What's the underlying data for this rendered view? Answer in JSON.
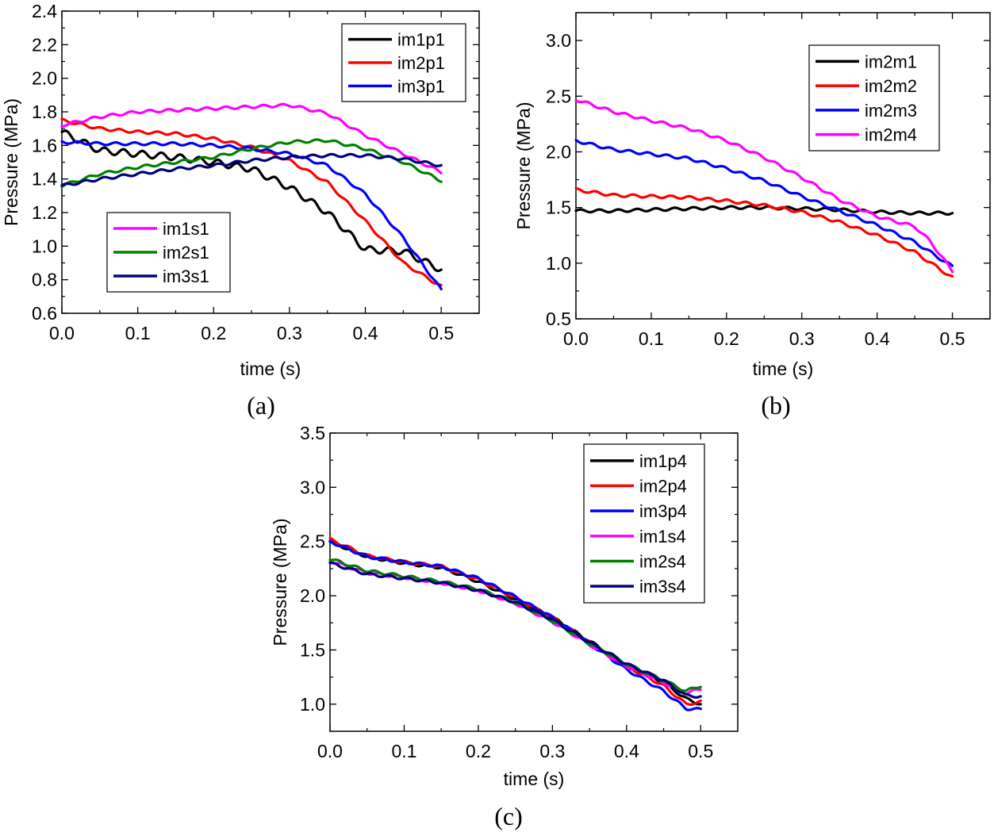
{
  "chart_data": [
    {
      "type": "line",
      "panel": "(a)",
      "xlabel": "time (s)",
      "ylabel": "Pressure (MPa)",
      "xlim": [
        0,
        0.55
      ],
      "ylim": [
        0.6,
        2.4
      ],
      "xticks": [
        "0.0",
        "0.1",
        "0.2",
        "0.3",
        "0.4",
        "0.5"
      ],
      "yticks": [
        "0.6",
        "0.8",
        "1.0",
        "1.2",
        "1.4",
        "1.6",
        "1.8",
        "2.0",
        "2.2",
        "2.4"
      ],
      "legend_placement": [
        "top-right",
        "bottom-left"
      ],
      "legends": [
        [
          "im1p1",
          "im2p1",
          "im3p1"
        ],
        [
          "im1s1",
          "im2s1",
          "im3s1"
        ]
      ],
      "series": [
        {
          "name": "im1p1",
          "color": "#000000",
          "x": [
            0,
            0.05,
            0.1,
            0.15,
            0.2,
            0.25,
            0.3,
            0.35,
            0.4,
            0.45,
            0.5
          ],
          "y": [
            1.68,
            1.57,
            1.55,
            1.53,
            1.5,
            1.46,
            1.35,
            1.2,
            0.98,
            0.97,
            0.86
          ],
          "wobble": 0.02
        },
        {
          "name": "im2p1",
          "color": "#ff0000",
          "x": [
            0,
            0.05,
            0.1,
            0.15,
            0.2,
            0.25,
            0.3,
            0.35,
            0.4,
            0.45,
            0.5
          ],
          "y": [
            1.75,
            1.7,
            1.68,
            1.67,
            1.64,
            1.59,
            1.51,
            1.38,
            1.15,
            0.9,
            0.76
          ]
        },
        {
          "name": "im3p1",
          "color": "#0000ff",
          "x": [
            0,
            0.05,
            0.1,
            0.15,
            0.2,
            0.25,
            0.3,
            0.35,
            0.4,
            0.45,
            0.5
          ],
          "y": [
            1.62,
            1.61,
            1.61,
            1.61,
            1.6,
            1.58,
            1.55,
            1.48,
            1.31,
            1.05,
            0.74
          ]
        },
        {
          "name": "im1s1",
          "color": "#ff00ff",
          "x": [
            0,
            0.05,
            0.1,
            0.15,
            0.2,
            0.25,
            0.3,
            0.35,
            0.4,
            0.45,
            0.5
          ],
          "y": [
            1.72,
            1.77,
            1.8,
            1.81,
            1.82,
            1.83,
            1.84,
            1.79,
            1.66,
            1.55,
            1.44
          ]
        },
        {
          "name": "im2s1",
          "color": "#008000",
          "x": [
            0,
            0.05,
            0.1,
            0.15,
            0.2,
            0.25,
            0.3,
            0.35,
            0.4,
            0.45,
            0.5
          ],
          "y": [
            1.36,
            1.43,
            1.47,
            1.5,
            1.53,
            1.58,
            1.62,
            1.63,
            1.58,
            1.5,
            1.39
          ]
        },
        {
          "name": "im3s1",
          "color": "#00007f",
          "x": [
            0,
            0.05,
            0.1,
            0.15,
            0.2,
            0.25,
            0.3,
            0.35,
            0.4,
            0.45,
            0.5
          ],
          "y": [
            1.36,
            1.4,
            1.43,
            1.46,
            1.48,
            1.51,
            1.53,
            1.54,
            1.54,
            1.52,
            1.48
          ]
        }
      ],
      "caption": "(a)"
    },
    {
      "type": "line",
      "panel": "(b)",
      "xlabel": "time (s)",
      "ylabel": "Pressure (MPa)",
      "xlim": [
        0,
        0.55
      ],
      "ylim": [
        0.5,
        3.25
      ],
      "xticks": [
        "0.0",
        "0.1",
        "0.2",
        "0.3",
        "0.4",
        "0.5"
      ],
      "yticks": [
        "0.5",
        "1.0",
        "1.5",
        "2.0",
        "2.5",
        "3.0"
      ],
      "legend_placement": [
        "top-right"
      ],
      "legends": [
        [
          "im2m1",
          "im2m2",
          "im2m3",
          "im2m4"
        ]
      ],
      "series": [
        {
          "name": "im2m1",
          "color": "#000000",
          "x": [
            0,
            0.05,
            0.1,
            0.15,
            0.2,
            0.25,
            0.3,
            0.35,
            0.4,
            0.45,
            0.5
          ],
          "y": [
            1.47,
            1.47,
            1.48,
            1.49,
            1.5,
            1.5,
            1.49,
            1.48,
            1.46,
            1.45,
            1.45
          ]
        },
        {
          "name": "im2m2",
          "color": "#ff0000",
          "x": [
            0,
            0.05,
            0.1,
            0.15,
            0.2,
            0.25,
            0.3,
            0.35,
            0.4,
            0.45,
            0.5
          ],
          "y": [
            1.66,
            1.61,
            1.6,
            1.59,
            1.56,
            1.52,
            1.46,
            1.37,
            1.25,
            1.1,
            0.87
          ]
        },
        {
          "name": "im2m3",
          "color": "#0000ff",
          "x": [
            0,
            0.05,
            0.1,
            0.15,
            0.2,
            0.25,
            0.3,
            0.35,
            0.4,
            0.45,
            0.5
          ],
          "y": [
            2.1,
            2.02,
            1.98,
            1.94,
            1.85,
            1.74,
            1.6,
            1.47,
            1.34,
            1.19,
            0.97
          ]
        },
        {
          "name": "im2m4",
          "color": "#ff00ff",
          "x": [
            0,
            0.05,
            0.1,
            0.15,
            0.2,
            0.25,
            0.3,
            0.35,
            0.4,
            0.45,
            0.47,
            0.5
          ],
          "y": [
            2.47,
            2.36,
            2.28,
            2.21,
            2.1,
            1.95,
            1.77,
            1.57,
            1.42,
            1.33,
            1.2,
            0.93
          ]
        }
      ],
      "caption": "(b)"
    },
    {
      "type": "line",
      "panel": "(c)",
      "xlabel": "time (s)",
      "ylabel": "Pressure (MPa)",
      "xlim": [
        0,
        0.55
      ],
      "ylim": [
        0.75,
        3.5
      ],
      "xticks": [
        "0.0",
        "0.1",
        "0.2",
        "0.3",
        "0.4",
        "0.5"
      ],
      "yticks": [
        "1.0",
        "1.5",
        "2.0",
        "2.5",
        "3.0",
        "3.5"
      ],
      "legend_placement": [
        "top-right"
      ],
      "legends": [
        [
          "im1p4",
          "im2p4",
          "im3p4",
          "im1s4",
          "im2s4",
          "im3s4"
        ]
      ],
      "series": [
        {
          "name": "im1p4",
          "color": "#000000",
          "x": [
            0,
            0.05,
            0.1,
            0.15,
            0.2,
            0.25,
            0.3,
            0.35,
            0.4,
            0.45,
            0.48,
            0.5
          ],
          "y": [
            2.5,
            2.36,
            2.3,
            2.26,
            2.13,
            1.97,
            1.8,
            1.58,
            1.37,
            1.2,
            1.05,
            1.0
          ]
        },
        {
          "name": "im2p4",
          "color": "#ff0000",
          "x": [
            0,
            0.05,
            0.1,
            0.15,
            0.2,
            0.25,
            0.3,
            0.35,
            0.4,
            0.45,
            0.48,
            0.5
          ],
          "y": [
            2.52,
            2.37,
            2.31,
            2.27,
            2.15,
            1.98,
            1.8,
            1.57,
            1.35,
            1.17,
            1.0,
            1.02
          ]
        },
        {
          "name": "im3p4",
          "color": "#0000ff",
          "x": [
            0,
            0.05,
            0.1,
            0.15,
            0.2,
            0.25,
            0.3,
            0.35,
            0.4,
            0.45,
            0.48,
            0.5
          ],
          "y": [
            2.5,
            2.36,
            2.31,
            2.27,
            2.16,
            1.99,
            1.8,
            1.56,
            1.32,
            1.12,
            0.96,
            0.95
          ]
        },
        {
          "name": "im1s4",
          "color": "#ff00ff",
          "x": [
            0,
            0.05,
            0.1,
            0.15,
            0.2,
            0.25,
            0.3,
            0.35,
            0.4,
            0.45,
            0.48,
            0.5
          ],
          "y": [
            2.32,
            2.21,
            2.17,
            2.12,
            2.05,
            1.93,
            1.76,
            1.55,
            1.35,
            1.2,
            1.1,
            1.14
          ]
        },
        {
          "name": "im2s4",
          "color": "#008000",
          "x": [
            0,
            0.05,
            0.1,
            0.15,
            0.2,
            0.25,
            0.3,
            0.35,
            0.4,
            0.45,
            0.48,
            0.5
          ],
          "y": [
            2.34,
            2.23,
            2.18,
            2.13,
            2.06,
            1.94,
            1.77,
            1.56,
            1.37,
            1.22,
            1.12,
            1.17
          ]
        },
        {
          "name": "im3s4",
          "color": "#00007f",
          "x": [
            0,
            0.05,
            0.1,
            0.15,
            0.2,
            0.25,
            0.3,
            0.35,
            0.4,
            0.45,
            0.48,
            0.5
          ],
          "y": [
            2.3,
            2.2,
            2.16,
            2.12,
            2.05,
            1.94,
            1.78,
            1.57,
            1.37,
            1.22,
            1.08,
            1.07
          ]
        }
      ],
      "caption": "(c)"
    }
  ]
}
